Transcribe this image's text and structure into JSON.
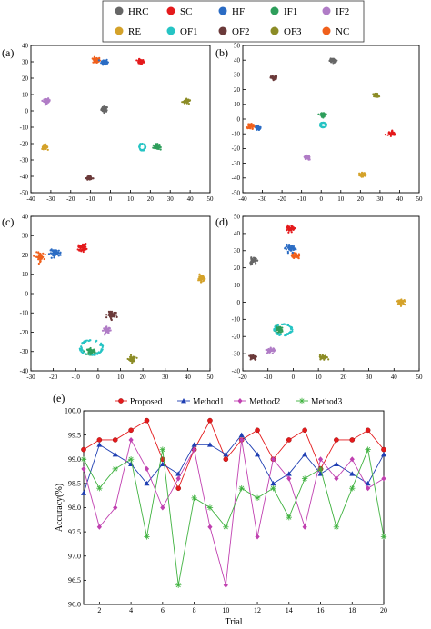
{
  "legend": {
    "items": [
      {
        "label": "HRC",
        "color": "#666666"
      },
      {
        "label": "SC",
        "color": "#e41a1c"
      },
      {
        "label": "HF",
        "color": "#2b6cc4"
      },
      {
        "label": "IF1",
        "color": "#2e9e5b"
      },
      {
        "label": "IF2",
        "color": "#b07cc6"
      },
      {
        "label": "RE",
        "color": "#d4a22a"
      },
      {
        "label": "OF1",
        "color": "#26c4c4"
      },
      {
        "label": "OF2",
        "color": "#6b3a3a"
      },
      {
        "label": "OF3",
        "color": "#8c8c26"
      },
      {
        "label": "NC",
        "color": "#f0601c"
      }
    ]
  },
  "chart_data": [
    {
      "type": "scatter",
      "panel_label": "(a)",
      "xlim": [
        -40,
        50
      ],
      "ylim": [
        -50,
        40
      ],
      "xticks": [
        -40,
        -30,
        -20,
        -10,
        0,
        10,
        20,
        30,
        40,
        50
      ],
      "yticks": [
        -50,
        -40,
        -30,
        -20,
        -10,
        0,
        10,
        20,
        30,
        40
      ],
      "clusters": [
        {
          "class": "HRC",
          "x": -3,
          "y": 1,
          "rx": 1.6,
          "ry": 1.6
        },
        {
          "class": "SC",
          "x": 15,
          "y": 30,
          "rx": 1.8,
          "ry": 1.4
        },
        {
          "class": "NC",
          "x": -7,
          "y": 31,
          "rx": 1.8,
          "ry": 1.8
        },
        {
          "class": "HF",
          "x": -3,
          "y": 30,
          "rx": 1.6,
          "ry": 1.6
        },
        {
          "class": "IF1",
          "x": 23,
          "y": -22,
          "rx": 1.6,
          "ry": 1.6
        },
        {
          "class": "IF2",
          "x": -32,
          "y": 6,
          "rx": 1.6,
          "ry": 1.4
        },
        {
          "class": "RE",
          "x": -33,
          "y": -22,
          "rx": 1.4,
          "ry": 1.4
        },
        {
          "class": "OF1",
          "x": 16,
          "y": -22,
          "rx": 1.6,
          "ry": 2.2
        },
        {
          "class": "OF2",
          "x": -11,
          "y": -41,
          "rx": 1.4,
          "ry": 1.4
        },
        {
          "class": "OF3",
          "x": 38,
          "y": 6,
          "rx": 1.6,
          "ry": 1.2
        }
      ]
    },
    {
      "type": "scatter",
      "panel_label": "(b)",
      "xlim": [
        -40,
        50
      ],
      "ylim": [
        -50,
        50
      ],
      "xticks": [
        -40,
        -30,
        -20,
        -10,
        0,
        10,
        20,
        30,
        40,
        50
      ],
      "yticks": [
        -50,
        -40,
        -30,
        -20,
        -10,
        0,
        10,
        20,
        30,
        40,
        50
      ],
      "clusters": [
        {
          "class": "HRC",
          "x": 6,
          "y": 40,
          "rx": 1.6,
          "ry": 1.4
        },
        {
          "class": "SC",
          "x": 36,
          "y": -10,
          "rx": 1.6,
          "ry": 1.4
        },
        {
          "class": "NC",
          "x": -36,
          "y": -5,
          "rx": 1.8,
          "ry": 1.6
        },
        {
          "class": "HF",
          "x": -32,
          "y": -6,
          "rx": 1.6,
          "ry": 1.6
        },
        {
          "class": "IF1",
          "x": 1,
          "y": 3,
          "rx": 1.6,
          "ry": 1.4
        },
        {
          "class": "IF2",
          "x": -7,
          "y": -26,
          "rx": 1.6,
          "ry": 1.2
        },
        {
          "class": "RE",
          "x": 21,
          "y": -38,
          "rx": 1.6,
          "ry": 1.4
        },
        {
          "class": "OF1",
          "x": 1,
          "y": -4,
          "rx": 1.6,
          "ry": 1.6
        },
        {
          "class": "OF2",
          "x": -24,
          "y": 28,
          "rx": 1.6,
          "ry": 1.4
        },
        {
          "class": "OF3",
          "x": 28,
          "y": 16,
          "rx": 1.4,
          "ry": 1.4
        }
      ]
    },
    {
      "type": "scatter",
      "panel_label": "(c)",
      "xlim": [
        -30,
        50
      ],
      "ylim": [
        -40,
        40
      ],
      "xticks": [
        -30,
        -20,
        -10,
        0,
        10,
        20,
        30,
        40,
        50
      ],
      "yticks": [
        -40,
        -30,
        -20,
        -10,
        0,
        10,
        20,
        30,
        40
      ],
      "clusters": [
        {
          "class": "SC",
          "x": -7,
          "y": 24,
          "rx": 1.8,
          "ry": 1.8
        },
        {
          "class": "NC",
          "x": -26,
          "y": 19,
          "rx": 1.8,
          "ry": 2.2
        },
        {
          "class": "HF",
          "x": -19,
          "y": 21,
          "rx": 2.6,
          "ry": 1.8
        },
        {
          "class": "IF1",
          "x": -3,
          "y": -30,
          "rx": 1.8,
          "ry": 1.6
        },
        {
          "class": "IF2",
          "x": 4,
          "y": -19,
          "rx": 1.6,
          "ry": 1.6
        },
        {
          "class": "RE",
          "x": 46,
          "y": 8,
          "rx": 1.2,
          "ry": 1.8
        },
        {
          "class": "OF1",
          "x": -3,
          "y": -28,
          "rx": 5,
          "ry": 4
        },
        {
          "class": "OF2",
          "x": 6,
          "y": -11,
          "rx": 1.8,
          "ry": 2
        },
        {
          "class": "OF3",
          "x": 15,
          "y": -34,
          "rx": 1.6,
          "ry": 1.4
        }
      ]
    },
    {
      "type": "scatter",
      "panel_label": "(d)",
      "xlim": [
        -20,
        50
      ],
      "ylim": [
        -40,
        50
      ],
      "xticks": [
        -20,
        -10,
        0,
        10,
        20,
        30,
        40,
        50
      ],
      "yticks": [
        -40,
        -30,
        -20,
        -10,
        0,
        10,
        20,
        30,
        40,
        50
      ],
      "clusters": [
        {
          "class": "HRC",
          "x": -16,
          "y": 24,
          "rx": 1.4,
          "ry": 1.8
        },
        {
          "class": "SC",
          "x": -1,
          "y": 43,
          "rx": 1.4,
          "ry": 1.6
        },
        {
          "class": "NC",
          "x": 1,
          "y": 27,
          "rx": 1.8,
          "ry": 1.6
        },
        {
          "class": "HF",
          "x": -1,
          "y": 31,
          "rx": 2,
          "ry": 1.8
        },
        {
          "class": "IF1",
          "x": -6,
          "y": -16,
          "rx": 1.6,
          "ry": 1.8
        },
        {
          "class": "IF2",
          "x": -9,
          "y": -28,
          "rx": 1.6,
          "ry": 1.4
        },
        {
          "class": "RE",
          "x": 43,
          "y": 0,
          "rx": 1.4,
          "ry": 1.4
        },
        {
          "class": "OF1",
          "x": -4,
          "y": -16,
          "rx": 3.6,
          "ry": 3.4
        },
        {
          "class": "OF2",
          "x": -16,
          "y": -32,
          "rx": 1.6,
          "ry": 1.6
        },
        {
          "class": "OF3",
          "x": 12,
          "y": -32,
          "rx": 1.4,
          "ry": 1.2
        }
      ]
    },
    {
      "type": "line",
      "panel_label": "(e)",
      "xlabel": "Trial",
      "ylabel": "Accuracy(%)",
      "xlim": [
        1,
        20
      ],
      "ylim": [
        96.0,
        100.0
      ],
      "xticks": [
        2,
        4,
        6,
        8,
        10,
        12,
        14,
        16,
        18,
        20
      ],
      "yticks": [
        "96.0",
        "96.5",
        "97.0",
        "97.5",
        "98.0",
        "98.5",
        "99.0",
        "99.5",
        "100.0"
      ],
      "x": [
        1,
        2,
        3,
        4,
        5,
        6,
        7,
        8,
        9,
        10,
        11,
        12,
        13,
        14,
        15,
        16,
        17,
        18,
        19,
        20
      ],
      "series": [
        {
          "name": "Proposed",
          "color": "#e41a1c",
          "marker": "circle",
          "values": [
            99.2,
            99.4,
            99.4,
            99.6,
            99.8,
            99.0,
            98.4,
            99.2,
            99.8,
            99.0,
            99.4,
            99.6,
            99.0,
            99.4,
            99.6,
            98.8,
            99.4,
            99.4,
            99.6,
            99.2
          ]
        },
        {
          "name": "Method1",
          "color": "#1f3fb3",
          "marker": "triangle",
          "values": [
            98.3,
            99.3,
            99.1,
            98.9,
            98.5,
            98.9,
            98.7,
            99.3,
            99.3,
            99.1,
            99.5,
            99.1,
            98.5,
            98.7,
            99.1,
            98.7,
            98.9,
            98.7,
            98.5,
            99.1
          ]
        },
        {
          "name": "Method2",
          "color": "#c040b0",
          "marker": "diamond",
          "values": [
            98.8,
            97.6,
            98.0,
            99.4,
            98.8,
            98.0,
            98.6,
            99.2,
            97.6,
            96.4,
            99.4,
            97.4,
            99.0,
            98.6,
            97.6,
            99.0,
            98.6,
            99.0,
            98.4,
            98.6
          ]
        },
        {
          "name": "Method3",
          "color": "#3fb23f",
          "marker": "star",
          "values": [
            99.0,
            98.4,
            98.8,
            99.0,
            97.4,
            99.2,
            96.4,
            98.2,
            98.0,
            97.6,
            98.4,
            98.2,
            98.4,
            97.8,
            98.6,
            98.8,
            97.6,
            98.4,
            99.2,
            97.4
          ]
        }
      ]
    }
  ]
}
